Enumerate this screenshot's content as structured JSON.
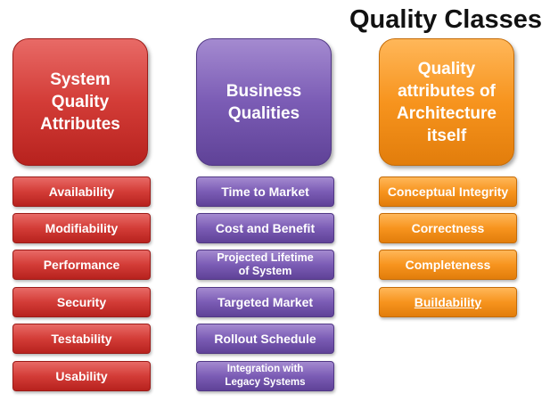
{
  "title": "Quality Classes",
  "columns": [
    {
      "header": "System\nQuality\nAttributes",
      "color": "#d33c37",
      "items": [
        "Availability",
        "Modifiability",
        "Performance",
        "Security",
        "Testability",
        "Usability"
      ]
    },
    {
      "header": "Business\nQualities",
      "color": "#7b5cb5",
      "items": [
        "Time to Market",
        "Cost and Benefit",
        "Projected Lifetime\nof System",
        "Targeted Market",
        "Rollout Schedule",
        "Integration with\nLegacy Systems"
      ]
    },
    {
      "header": "Quality\nattributes of\nArchitecture\nitself",
      "color": "#f7941e",
      "items": [
        "Conceptual Integrity",
        "Correctness",
        "Completeness",
        "Buildability"
      ]
    }
  ]
}
